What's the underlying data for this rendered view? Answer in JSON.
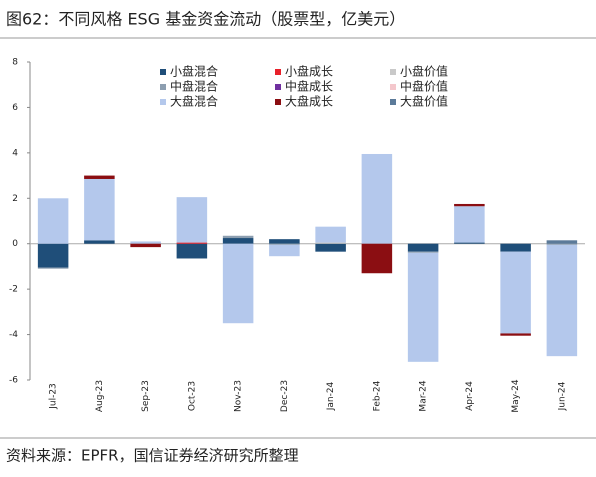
{
  "chart_data": {
    "type": "bar",
    "stacked": true,
    "title": "图62：不同风格 ESG 基金资金流动（股票型，亿美元）",
    "source": "资料来源：EPFR，国信证券经济研究所整理",
    "categories": [
      "Jul-23",
      "Aug-23",
      "Sep-23",
      "Oct-23",
      "Nov-23",
      "Dec-23",
      "Jan-24",
      "Feb-24",
      "Mar-24",
      "Apr-24",
      "May-24",
      "Jun-24"
    ],
    "series": [
      {
        "name": "小盘混合",
        "color": "#1f4e79",
        "values": [
          -1.05,
          0.15,
          0,
          -0.65,
          0.25,
          0.2,
          -0.35,
          0,
          -0.35,
          0.05,
          -0.35,
          0
        ]
      },
      {
        "name": "小盘成长",
        "color": "#e8202a",
        "values": [
          0,
          0,
          0,
          0.05,
          0,
          0,
          0,
          0,
          0,
          0,
          0,
          0
        ]
      },
      {
        "name": "小盘价值",
        "color": "#c9c9c9",
        "values": [
          0,
          0,
          0,
          0,
          0,
          0,
          0.05,
          0,
          0,
          0,
          0,
          0
        ]
      },
      {
        "name": "中盘混合",
        "color": "#8c9eb0",
        "values": [
          -0.05,
          0,
          0,
          0,
          0.1,
          -0.05,
          0,
          0,
          -0.05,
          0,
          0,
          -0.05
        ]
      },
      {
        "name": "中盘成长",
        "color": "#7030a0",
        "values": [
          0,
          0,
          0,
          0,
          0,
          0,
          0,
          0,
          0,
          0,
          0,
          0
        ]
      },
      {
        "name": "中盘价值",
        "color": "#f4c7cc",
        "values": [
          0,
          0,
          0,
          0,
          0,
          0,
          0,
          0,
          0,
          0,
          0,
          0
        ]
      },
      {
        "name": "大盘混合",
        "color": "#b4c8ec",
        "values": [
          2.0,
          2.7,
          0.1,
          2.0,
          -3.5,
          -0.5,
          0.7,
          3.95,
          -4.8,
          1.6,
          -3.6,
          -4.9
        ]
      },
      {
        "name": "大盘成长",
        "color": "#8b0e12",
        "values": [
          0,
          0.15,
          -0.15,
          0,
          0,
          0,
          0,
          -1.3,
          0,
          0.1,
          -0.1,
          0
        ]
      },
      {
        "name": "大盘价值",
        "color": "#5b7a99",
        "values": [
          0,
          0,
          0,
          0,
          0,
          0,
          0,
          0,
          0,
          0,
          0,
          0.15
        ]
      }
    ],
    "ylim": [
      -6,
      8
    ],
    "yticks": [
      -6,
      -4,
      -2,
      0,
      2,
      4,
      6,
      8
    ]
  }
}
